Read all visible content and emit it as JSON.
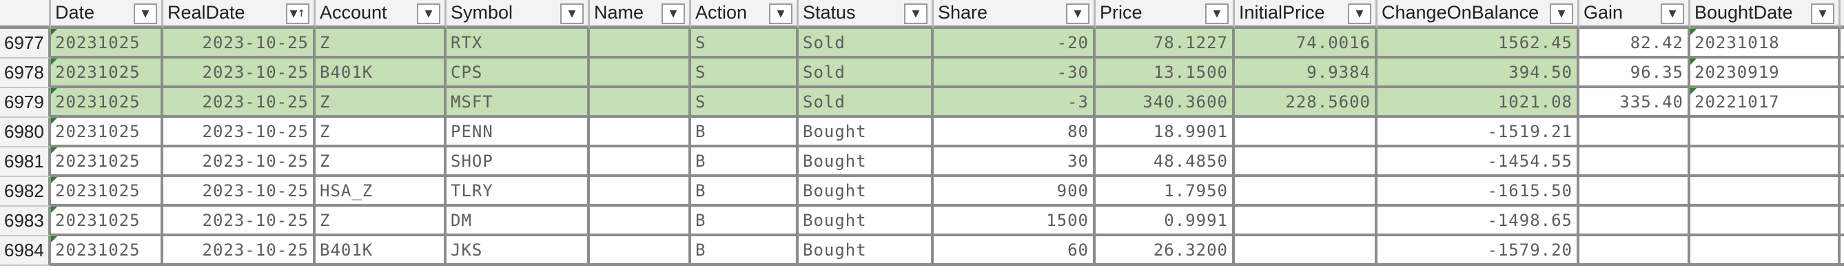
{
  "headers": [
    {
      "row_num": ""
    },
    {
      "label": "Date",
      "icon": "filter-dropdown"
    },
    {
      "label": "RealDate",
      "icon": "sort-ascending-filter"
    },
    {
      "label": "Account",
      "icon": "filter-dropdown"
    },
    {
      "label": "Symbol",
      "icon": "filter-dropdown"
    },
    {
      "label": "Name",
      "icon": "filter-dropdown"
    },
    {
      "label": "Action",
      "icon": "filter-dropdown"
    },
    {
      "label": "Status",
      "icon": "filter-dropdown"
    },
    {
      "label": "Share",
      "icon": "filter-dropdown"
    },
    {
      "label": "Price",
      "icon": "filter-dropdown"
    },
    {
      "label": "InitialPrice",
      "icon": "filter-dropdown"
    },
    {
      "label": "ChangeOnBalance",
      "icon": "filter-dropdown"
    },
    {
      "label": "Gain",
      "icon": "filter-dropdown"
    },
    {
      "label": "BoughtDate",
      "icon": "filter-dropdown"
    }
  ],
  "colors": {
    "highlight_green": "#c6dfb5",
    "header_bg": "#f3f3f3",
    "comment_triangle": "#2e7d32"
  },
  "rows": [
    {
      "n": "6977",
      "date": "20231025",
      "realdate": "2023-10-25",
      "account": "Z",
      "symbol": "RTX",
      "name": "",
      "action": "S",
      "status": "Sold",
      "share": "-20",
      "price": "78.1227",
      "initial": "74.0016",
      "change": "1562.45",
      "gain": "82.42",
      "bought": "20231018",
      "green": true
    },
    {
      "n": "6978",
      "date": "20231025",
      "realdate": "2023-10-25",
      "account": "B401K",
      "symbol": "CPS",
      "name": "",
      "action": "S",
      "status": "Sold",
      "share": "-30",
      "price": "13.1500",
      "initial": "9.9384",
      "change": "394.50",
      "gain": "96.35",
      "bought": "20230919",
      "green": true
    },
    {
      "n": "6979",
      "date": "20231025",
      "realdate": "2023-10-25",
      "account": "Z",
      "symbol": "MSFT",
      "name": "",
      "action": "S",
      "status": "Sold",
      "share": "-3",
      "price": "340.3600",
      "initial": "228.5600",
      "change": "1021.08",
      "gain": "335.40",
      "bought": "20221017",
      "green": true
    },
    {
      "n": "6980",
      "date": "20231025",
      "realdate": "2023-10-25",
      "account": "Z",
      "symbol": "PENN",
      "name": "",
      "action": "B",
      "status": "Bought",
      "share": "80",
      "price": "18.9901",
      "initial": "",
      "change": "-1519.21",
      "gain": "",
      "bought": "",
      "green": false
    },
    {
      "n": "6981",
      "date": "20231025",
      "realdate": "2023-10-25",
      "account": "Z",
      "symbol": "SHOP",
      "name": "",
      "action": "B",
      "status": "Bought",
      "share": "30",
      "price": "48.4850",
      "initial": "",
      "change": "-1454.55",
      "gain": "",
      "bought": "",
      "green": false
    },
    {
      "n": "6982",
      "date": "20231025",
      "realdate": "2023-10-25",
      "account": "HSA_Z",
      "symbol": "TLRY",
      "name": "",
      "action": "B",
      "status": "Bought",
      "share": "900",
      "price": "1.7950",
      "initial": "",
      "change": "-1615.50",
      "gain": "",
      "bought": "",
      "green": false
    },
    {
      "n": "6983",
      "date": "20231025",
      "realdate": "2023-10-25",
      "account": "Z",
      "symbol": "DM",
      "name": "",
      "action": "B",
      "status": "Bought",
      "share": "1500",
      "price": "0.9991",
      "initial": "",
      "change": "-1498.65",
      "gain": "",
      "bought": "",
      "green": false
    },
    {
      "n": "6984",
      "date": "20231025",
      "realdate": "2023-10-25",
      "account": "B401K",
      "symbol": "JKS",
      "name": "",
      "action": "B",
      "status": "Bought",
      "share": "60",
      "price": "26.3200",
      "initial": "",
      "change": "-1579.20",
      "gain": "",
      "bought": "",
      "green": false
    }
  ]
}
